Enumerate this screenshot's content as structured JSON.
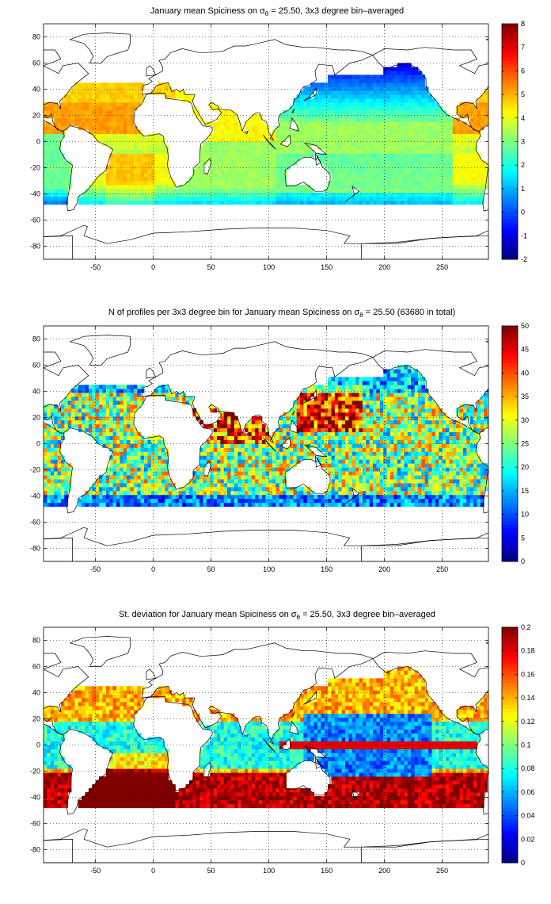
{
  "chart_data": [
    {
      "type": "heatmap",
      "title": "January mean Spiciness on σ",
      "title_sub": "θ",
      "title_rest": " = 25.50, 3x3 degree bin–averaged",
      "xlim": [
        -95,
        290
      ],
      "ylim": [
        -90,
        90
      ],
      "xticks": [
        -50,
        0,
        50,
        100,
        150,
        200,
        250
      ],
      "yticks": [
        -80,
        -60,
        -40,
        -20,
        0,
        20,
        40,
        60,
        80
      ],
      "colorbar": {
        "min": -2,
        "max": 8,
        "ticks": [
          -2,
          -1,
          0,
          1,
          2,
          3,
          4,
          5,
          6,
          7,
          8
        ]
      },
      "colormap": "jet",
      "grid": true,
      "field": "spice"
    },
    {
      "type": "heatmap",
      "title": "N of profiles per 3x3 degree bin for January mean Spiciness on σ",
      "title_sub": "θ",
      "title_rest": " = 25.50 (63680 in total)",
      "xlim": [
        -95,
        290
      ],
      "ylim": [
        -90,
        90
      ],
      "xticks": [
        -50,
        0,
        50,
        100,
        150,
        200,
        250
      ],
      "yticks": [
        -80,
        -60,
        -40,
        -20,
        0,
        20,
        40,
        60,
        80
      ],
      "colorbar": {
        "min": 0,
        "max": 50,
        "ticks": [
          0,
          5,
          10,
          15,
          20,
          25,
          30,
          35,
          40,
          45,
          50
        ]
      },
      "colormap": "jet",
      "grid": true,
      "field": "count"
    },
    {
      "type": "heatmap",
      "title": "St. deviation for January mean Spiciness on σ",
      "title_sub": "θ",
      "title_rest": " = 25.50, 3x3 degree bin–averaged",
      "xlim": [
        -95,
        290
      ],
      "ylim": [
        -90,
        90
      ],
      "xticks": [
        -50,
        0,
        50,
        100,
        150,
        200,
        250
      ],
      "yticks": [
        -80,
        -60,
        -40,
        -20,
        0,
        20,
        40,
        60,
        80
      ],
      "colorbar": {
        "min": 0,
        "max": 0.2,
        "ticks": [
          0,
          0.02,
          0.04,
          0.06,
          0.08,
          0.1,
          0.12,
          0.14,
          0.16,
          0.18,
          0.2
        ]
      },
      "colormap": "jet",
      "grid": true,
      "field": "std"
    }
  ]
}
